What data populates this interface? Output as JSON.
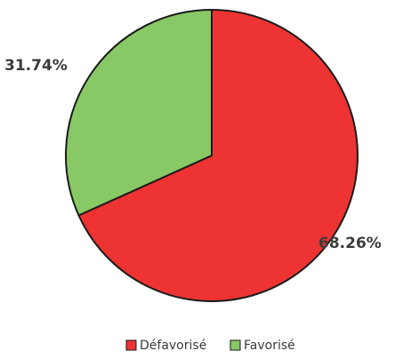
{
  "chart_data": {
    "type": "pie",
    "title": "",
    "slices": [
      {
        "label": "Défavorisé",
        "value": 68.26,
        "value_label": "68.26%",
        "color": "#ee3333"
      },
      {
        "label": "Favorisé",
        "value": 31.74,
        "value_label": "31.74%",
        "color": "#88c865"
      }
    ],
    "start_angle": "12 o'clock",
    "direction": "clockwise",
    "legend_position": "bottom",
    "slice_border_color": "#1a1a1a"
  }
}
